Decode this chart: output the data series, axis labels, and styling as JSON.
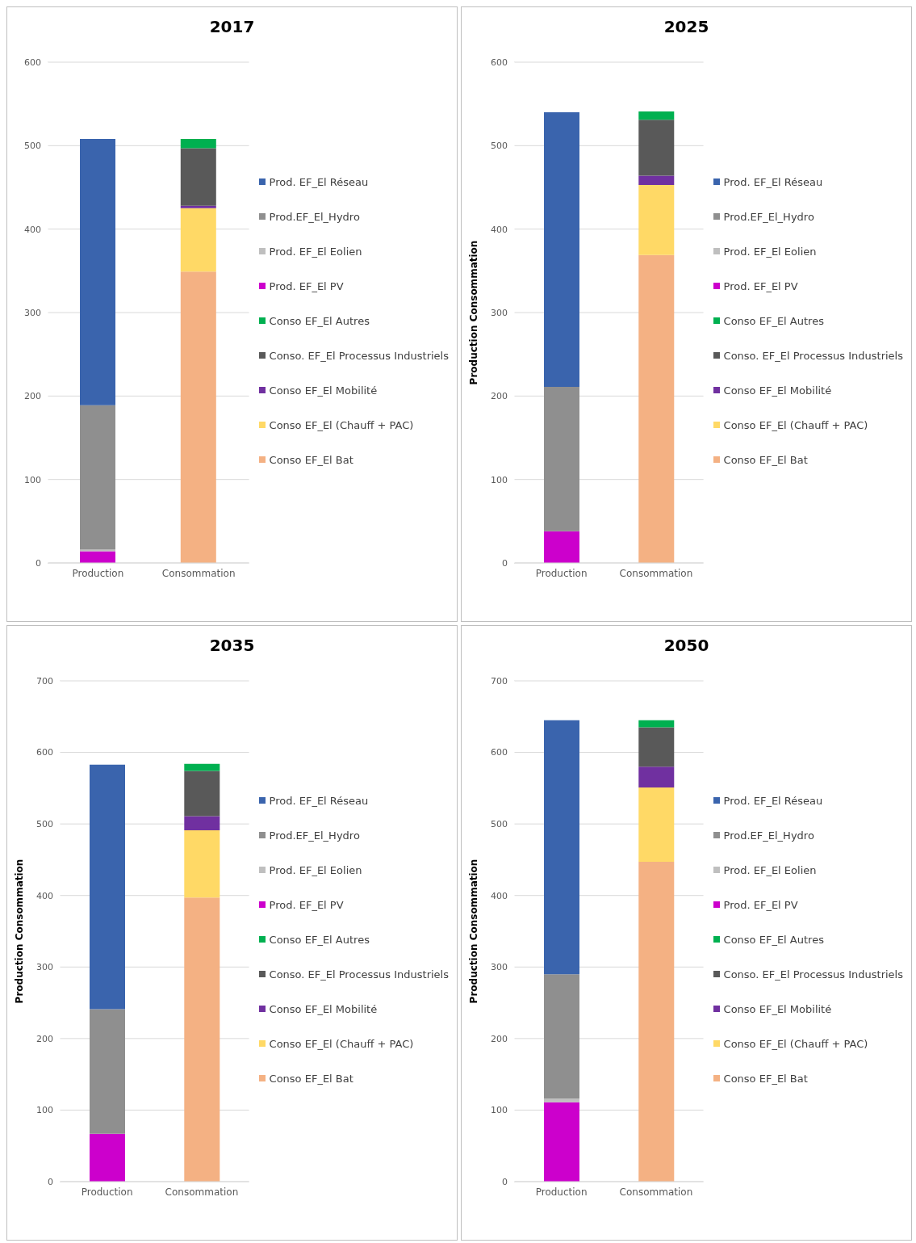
{
  "chart_data": [
    {
      "type": "bar",
      "title": "2017",
      "categories": [
        "Production",
        "Consommation"
      ],
      "stacked": true,
      "ylim": [
        0,
        600
      ],
      "yticks": [
        0,
        100,
        200,
        300,
        400,
        500,
        600
      ],
      "grid": "y",
      "legend": "right",
      "series": [
        {
          "name": "Conso EF_El Bat",
          "color": "#f4b183",
          "values": [
            null,
            349
          ]
        },
        {
          "name": "Conso EF_El (Chauff + PAC)",
          "color": "#ffd966",
          "values": [
            null,
            76
          ]
        },
        {
          "name": "Conso EF_El Mobilité",
          "color": "#7030a0",
          "values": [
            null,
            3
          ]
        },
        {
          "name": "Conso. EF_El Processus Industriels",
          "color": "#595959",
          "values": [
            null,
            69
          ]
        },
        {
          "name": "Conso EF_El Autres",
          "color": "#00b050",
          "values": [
            null,
            11
          ]
        },
        {
          "name": "Prod. EF_El PV",
          "color": "#cc00cc",
          "values": [
            14,
            null
          ]
        },
        {
          "name": "Prod. EF_El Eolien",
          "color": "#bfbfbf",
          "values": [
            2,
            null
          ]
        },
        {
          "name": "Prod.EF_El_Hydro",
          "color": "#8f8f8f",
          "values": [
            173,
            null
          ]
        },
        {
          "name": "Prod. EF_El Réseau",
          "color": "#3a64ad",
          "values": [
            319,
            null
          ]
        }
      ]
    },
    {
      "type": "bar",
      "title": "2025",
      "ylabel": "Production Consommation",
      "categories": [
        "Production",
        "Consommation"
      ],
      "stacked": true,
      "ylim": [
        0,
        600
      ],
      "yticks": [
        0,
        100,
        200,
        300,
        400,
        500,
        600
      ],
      "grid": "y",
      "legend": "right",
      "series": [
        {
          "name": "Conso EF_El Bat",
          "color": "#f4b183",
          "values": [
            null,
            369
          ]
        },
        {
          "name": "Conso EF_El (Chauff + PAC)",
          "color": "#ffd966",
          "values": [
            null,
            84
          ]
        },
        {
          "name": "Conso EF_El Mobilité",
          "color": "#7030a0",
          "values": [
            null,
            11
          ]
        },
        {
          "name": "Conso. EF_El Processus Industriels",
          "color": "#595959",
          "values": [
            null,
            67
          ]
        },
        {
          "name": "Conso EF_El Autres",
          "color": "#00b050",
          "values": [
            null,
            10
          ]
        },
        {
          "name": "Prod. EF_El PV",
          "color": "#cc00cc",
          "values": [
            38,
            null
          ]
        },
        {
          "name": "Prod. EF_El Eolien",
          "color": "#bfbfbf",
          "values": [
            null,
            null
          ]
        },
        {
          "name": "Prod.EF_El_Hydro",
          "color": "#8f8f8f",
          "values": [
            173,
            null
          ]
        },
        {
          "name": "Prod. EF_El Réseau",
          "color": "#3a64ad",
          "values": [
            329,
            null
          ]
        }
      ]
    },
    {
      "type": "bar",
      "title": "2035",
      "ylabel": "Production Consommation",
      "categories": [
        "Production",
        "Consommation"
      ],
      "stacked": true,
      "ylim": [
        0,
        700
      ],
      "yticks": [
        0,
        100,
        200,
        300,
        400,
        500,
        600,
        700
      ],
      "grid": "y",
      "legend": "right",
      "series": [
        {
          "name": "Conso EF_El Bat",
          "color": "#f4b183",
          "values": [
            null,
            397
          ]
        },
        {
          "name": "Conso EF_El (Chauff + PAC)",
          "color": "#ffd966",
          "values": [
            null,
            94
          ]
        },
        {
          "name": "Conso EF_El Mobilité",
          "color": "#7030a0",
          "values": [
            null,
            20
          ]
        },
        {
          "name": "Conso. EF_El Processus Industriels",
          "color": "#595959",
          "values": [
            null,
            63
          ]
        },
        {
          "name": "Conso EF_El Autres",
          "color": "#00b050",
          "values": [
            null,
            10
          ]
        },
        {
          "name": "Prod. EF_El PV",
          "color": "#cc00cc",
          "values": [
            67,
            null
          ]
        },
        {
          "name": "Prod. EF_El Eolien",
          "color": "#bfbfbf",
          "values": [
            null,
            null
          ]
        },
        {
          "name": "Prod.EF_El_Hydro",
          "color": "#8f8f8f",
          "values": [
            174,
            null
          ]
        },
        {
          "name": "Prod. EF_El Réseau",
          "color": "#3a64ad",
          "values": [
            342,
            null
          ]
        }
      ]
    },
    {
      "type": "bar",
      "title": "2050",
      "ylabel": "Production Consommation",
      "categories": [
        "Production",
        "Consommation"
      ],
      "stacked": true,
      "ylim": [
        0,
        700
      ],
      "yticks": [
        0,
        100,
        200,
        300,
        400,
        500,
        600,
        700
      ],
      "grid": "y",
      "legend": "right",
      "series": [
        {
          "name": "Conso EF_El Bat",
          "color": "#f4b183",
          "values": [
            null,
            447
          ]
        },
        {
          "name": "Conso EF_El (Chauff + PAC)",
          "color": "#ffd966",
          "values": [
            null,
            104
          ]
        },
        {
          "name": "Conso EF_El Mobilité",
          "color": "#7030a0",
          "values": [
            null,
            29
          ]
        },
        {
          "name": "Conso. EF_El Processus Industriels",
          "color": "#595959",
          "values": [
            null,
            55
          ]
        },
        {
          "name": "Conso EF_El Autres",
          "color": "#00b050",
          "values": [
            null,
            10
          ]
        },
        {
          "name": "Prod. EF_El PV",
          "color": "#cc00cc",
          "values": [
            111,
            null
          ]
        },
        {
          "name": "Prod. EF_El Eolien",
          "color": "#bfbfbf",
          "values": [
            5,
            null
          ]
        },
        {
          "name": "Prod.EF_El_Hydro",
          "color": "#8f8f8f",
          "values": [
            174,
            null
          ]
        },
        {
          "name": "Prod. EF_El Réseau",
          "color": "#3a64ad",
          "values": [
            355,
            null
          ]
        }
      ]
    }
  ]
}
